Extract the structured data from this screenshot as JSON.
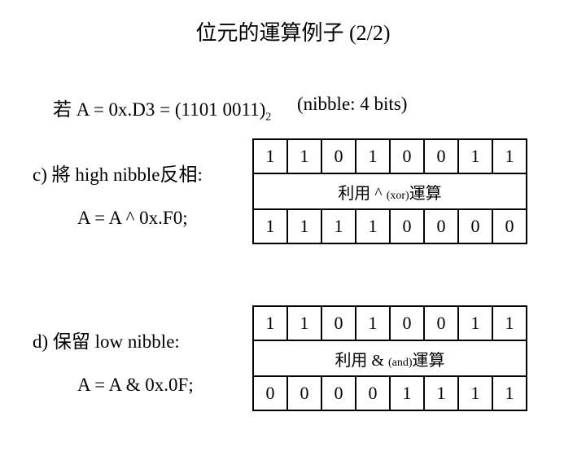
{
  "title": "位元的運算例子 (2/2)",
  "premise_prefix": "若 A = 0x.D3 = (1101 0011)",
  "premise_sub": "2",
  "nibble_note": "(nibble: 4 bits)",
  "c": {
    "label": "c)  將 high nibble反相:",
    "expr": "A = A ^ 0x.F0;",
    "row1": [
      "1",
      "1",
      "0",
      "1",
      "0",
      "0",
      "1",
      "1"
    ],
    "op_prefix": "利用 ^ ",
    "op_small": "(xor)",
    "op_suffix": "運算",
    "row2": [
      "1",
      "1",
      "1",
      "1",
      "0",
      "0",
      "0",
      "0"
    ]
  },
  "d": {
    "label": "d)  保留 low nibble:",
    "expr": "A = A & 0x.0F;",
    "row1": [
      "1",
      "1",
      "0",
      "1",
      "0",
      "0",
      "1",
      "1"
    ],
    "op_prefix": "利用 & ",
    "op_small": "(and)",
    "op_suffix": "運算",
    "row2": [
      "0",
      "0",
      "0",
      "0",
      "1",
      "1",
      "1",
      "1"
    ]
  },
  "colors": {
    "bg": "#ffffff",
    "fg": "#000000",
    "border": "#000000"
  }
}
